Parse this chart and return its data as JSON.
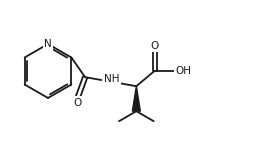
{
  "bg_color": "#ffffff",
  "line_color": "#1a1a1a",
  "line_width": 1.3,
  "font_size": 7.5,
  "figsize": [
    2.64,
    1.49
  ],
  "dpi": 100,
  "N_label": "N",
  "NH_label": "NH",
  "O1_label": "O",
  "O2_label": "O",
  "OH_label": "OH"
}
